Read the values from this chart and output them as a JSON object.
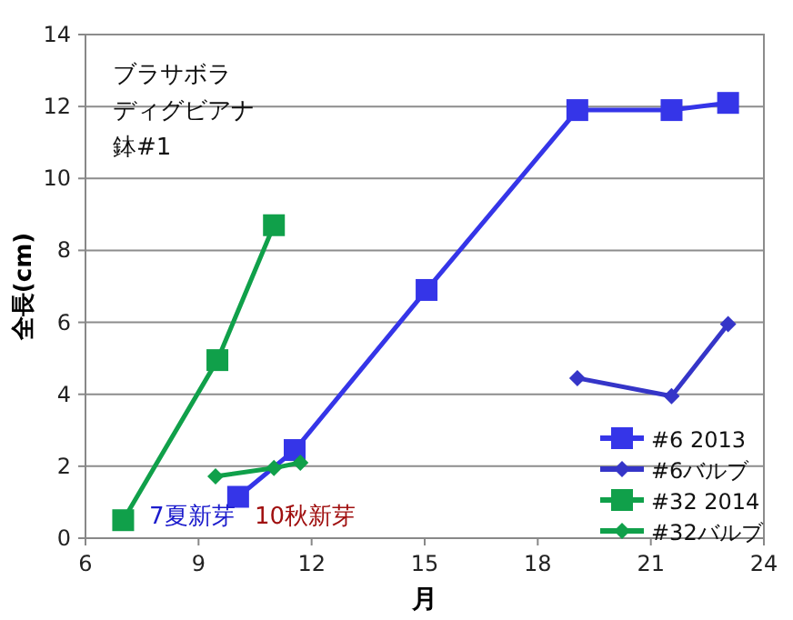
{
  "chart_data": {
    "type": "line",
    "xlabel": "月",
    "ylabel": "全長(cm)",
    "xlim": [
      6,
      24
    ],
    "xticks": [
      6,
      9,
      12,
      15,
      18,
      21,
      24
    ],
    "ylim": [
      0,
      14
    ],
    "yticks": [
      0,
      2,
      4,
      6,
      8,
      10,
      12,
      14
    ],
    "grid": "y",
    "legend": "bottom right",
    "line_style": "solid",
    "annotations": [
      "ブラサボラ",
      "ディグビアナ",
      "鉢#1",
      "7夏新芽",
      "10秋新芽"
    ],
    "series": [
      {
        "name": "#6 2013",
        "color": "#3535e8",
        "marker": "square",
        "x": [
          10.05,
          11.55,
          15.05,
          19.05,
          21.55,
          23.05
        ],
        "values": [
          1.15,
          2.45,
          6.9,
          11.9,
          11.9,
          12.1
        ]
      },
      {
        "name": "#6バルブ",
        "color": "#3535c8",
        "marker": "diamond",
        "x": [
          19.05,
          21.55,
          23.05
        ],
        "values": [
          4.45,
          3.95,
          5.95
        ]
      },
      {
        "name": "#32 2014",
        "color": "#10a04a",
        "marker": "square",
        "x": [
          7.0,
          9.5,
          11.0
        ],
        "values": [
          0.5,
          4.95,
          8.7
        ]
      },
      {
        "name": "#32バルブ",
        "color": "#10a04a",
        "marker": "diamond",
        "x": [
          9.45,
          11.0,
          11.7
        ],
        "values": [
          1.72,
          1.95,
          2.1
        ]
      }
    ]
  }
}
